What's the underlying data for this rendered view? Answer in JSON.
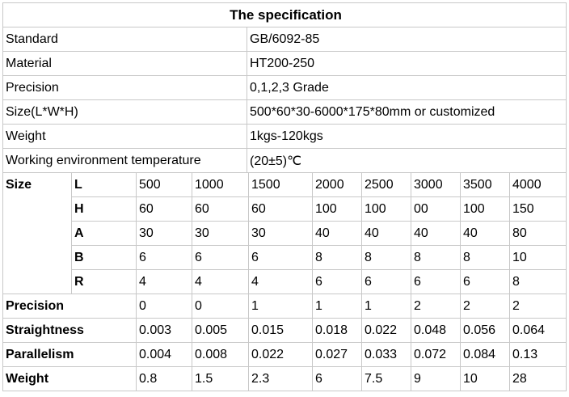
{
  "title": "The specification",
  "spec": [
    {
      "label": "Standard",
      "value": "GB/6092-85"
    },
    {
      "label": "Material",
      "value": "HT200-250"
    },
    {
      "label": "Precision",
      "value": "0,1,2,3 Grade"
    },
    {
      "label": "Size(L*W*H)",
      "value": "500*60*30-6000*175*80mm or customized"
    },
    {
      "label": "Weight",
      "value": "1kgs-120kgs"
    },
    {
      "label": "Working environment temperature",
      "value": "(20±5)℃"
    }
  ],
  "size_label": "Size",
  "dims": [
    {
      "key": "L",
      "values": [
        "500",
        "1000",
        "1500",
        "2000",
        "2500",
        "3000",
        "3500",
        "4000"
      ]
    },
    {
      "key": "H",
      "values": [
        "60",
        "60",
        "60",
        "100",
        "100",
        "00",
        "100",
        "150"
      ]
    },
    {
      "key": "A",
      "values": [
        "30",
        "30",
        "30",
        "40",
        "40",
        "40",
        "40",
        "80"
      ]
    },
    {
      "key": "B",
      "values": [
        "6",
        "6",
        "6",
        "8",
        "8",
        "8",
        "8",
        "10"
      ]
    },
    {
      "key": "R",
      "values": [
        "4",
        "4",
        "4",
        "6",
        "6",
        "6",
        "6",
        "8"
      ]
    }
  ],
  "metrics": [
    {
      "label": "Precision",
      "values": [
        "0",
        "0",
        "1",
        "1",
        "1",
        "2",
        "2",
        "2"
      ]
    },
    {
      "label": "Straightness",
      "values": [
        "0.003",
        "0.005",
        "0.015",
        "0.018",
        "0.022",
        "0.048",
        "0.056",
        "0.064"
      ]
    },
    {
      "label": "Parallelism",
      "values": [
        "0.004",
        "0.008",
        "0.022",
        "0.027",
        "0.033",
        "0.072",
        "0.084",
        "0.13"
      ]
    },
    {
      "label": "Weight",
      "values": [
        "0.8",
        "1.5",
        "2.3",
        "6",
        "7.5",
        "9",
        "10",
        "28"
      ]
    }
  ]
}
